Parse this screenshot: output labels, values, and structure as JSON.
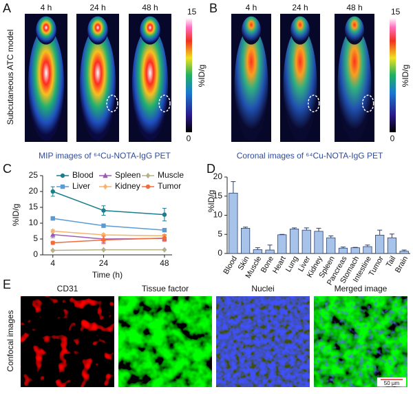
{
  "panel_a": {
    "label": "A",
    "times": [
      "4 h",
      "24 h",
      "48 h"
    ],
    "side_label": "Subcutaneous ATC model",
    "colorbar": {
      "max": 15,
      "min": 0,
      "label": "%ID/g"
    },
    "caption": "MIP images of ⁶⁴Cu-NOTA-IgG PET"
  },
  "panel_b": {
    "label": "B",
    "times": [
      "4 h",
      "24 h",
      "48 h"
    ],
    "colorbar": {
      "max": 15,
      "min": 0,
      "label": "%ID/g"
    },
    "caption": "Coronal images of ⁶⁴Cu-NOTA-IgG PET"
  },
  "chart_data": [
    {
      "type": "line",
      "label": "C",
      "xlabel": "Time (h)",
      "ylabel": "%ID/g",
      "x": [
        4,
        24,
        48
      ],
      "xlim": [
        0,
        51
      ],
      "xticks": [
        4,
        24,
        48
      ],
      "ylim": [
        0,
        25
      ],
      "yticks": [
        0,
        5,
        10,
        15,
        20,
        25
      ],
      "legend": "top",
      "series": [
        {
          "name": "Blood",
          "color": "#1b7e8c",
          "marker": "circle",
          "values": [
            20,
            14,
            12.7
          ],
          "errors": [
            1.5,
            1.5,
            2
          ]
        },
        {
          "name": "Liver",
          "color": "#5b9bd5",
          "marker": "square",
          "values": [
            11.5,
            9.2,
            7.8
          ],
          "errors": [
            0.4,
            0.3,
            0.4
          ]
        },
        {
          "name": "Spleen",
          "color": "#9b59b6",
          "marker": "triangle",
          "values": [
            6.4,
            5,
            5.2
          ],
          "errors": [
            1,
            1.2,
            0.8
          ]
        },
        {
          "name": "Kidney",
          "color": "#f7b26b",
          "marker": "diamond",
          "values": [
            7.5,
            6.3,
            6
          ],
          "errors": [
            0.4,
            0.4,
            0.4
          ]
        },
        {
          "name": "Muscle",
          "color": "#b5b08a",
          "marker": "diamond",
          "values": [
            1.4,
            1.6,
            1.6
          ],
          "errors": [
            0.2,
            0.2,
            0.2
          ]
        },
        {
          "name": "Tumor",
          "color": "#f26b3a",
          "marker": "circle",
          "values": [
            3.8,
            4.7,
            5.3
          ],
          "errors": [
            0.5,
            1.2,
            1
          ]
        }
      ]
    },
    {
      "type": "bar",
      "label": "D",
      "ylabel": "%ID/g",
      "color": "#a8c3ea",
      "edge_color": "#2a3f6a",
      "categories": [
        "Blood",
        "Skin",
        "Muscle",
        "Bone",
        "Heart",
        "Lung",
        "Liver",
        "Kidney",
        "Spleen",
        "Pancreas",
        "Stomach",
        "Intestine",
        "Tumor",
        "Tail",
        "Brain"
      ],
      "values": [
        15.8,
        6.6,
        1,
        0.9,
        4.9,
        6.4,
        6.1,
        5.8,
        4.1,
        1.4,
        1.5,
        1.8,
        4.8,
        4.1,
        0.6
      ],
      "errors": [
        3,
        0.3,
        0.5,
        1.3,
        0.1,
        0.3,
        0.6,
        0.8,
        0.5,
        0.3,
        0.1,
        0.4,
        1.3,
        1,
        0.3
      ],
      "ylim": [
        0,
        20
      ],
      "yticks": [
        0,
        5,
        10,
        15,
        20
      ]
    }
  ],
  "panel_e": {
    "label": "E",
    "side_label": "Confocal images",
    "channels": [
      {
        "title": "CD31",
        "color": "#e02020"
      },
      {
        "title": "Tissue factor",
        "color": "#1fa82a"
      },
      {
        "title": "Nuclei",
        "color": "#3a4fd0"
      },
      {
        "title": "Merged image",
        "color": "#111111"
      }
    ],
    "scale_bar": "50 µm"
  }
}
